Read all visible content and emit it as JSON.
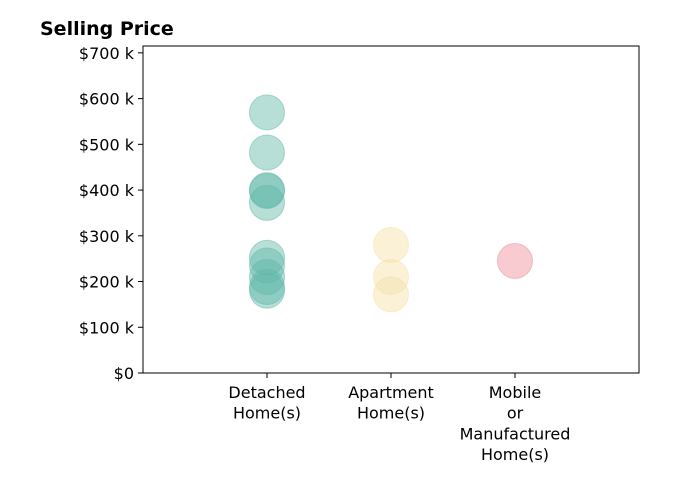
{
  "chart_data": {
    "type": "scatter",
    "title": "Selling Price",
    "xlabel": "",
    "ylabel": "",
    "categories": [
      [
        "Detached",
        "Home(s)"
      ],
      [
        "Apartment",
        "Home(s)"
      ],
      [
        "Mobile",
        "or",
        "Manufactured",
        "Home(s)"
      ]
    ],
    "xlim": [
      -1,
      3
    ],
    "ylim": [
      0,
      715000
    ],
    "yticks": [
      0,
      100000,
      200000,
      300000,
      400000,
      500000,
      600000,
      700000
    ],
    "ytick_labels": [
      "$0",
      "$100 k",
      "$200 k",
      "$300 k",
      "$400 k",
      "$500 k",
      "$600 k",
      "$700 k"
    ],
    "grid": false,
    "legend": false,
    "series": [
      {
        "category_index": 0,
        "color": "#5fb8a8",
        "values": [
          570000,
          482000,
          400000,
          398000,
          372000,
          252000,
          235000,
          210000,
          188000,
          180000
        ]
      },
      {
        "category_index": 1,
        "color": "#f5dfa6",
        "values": [
          280000,
          210000,
          172000
        ]
      },
      {
        "category_index": 2,
        "color": "#f08c98",
        "values": [
          245000
        ]
      }
    ]
  }
}
